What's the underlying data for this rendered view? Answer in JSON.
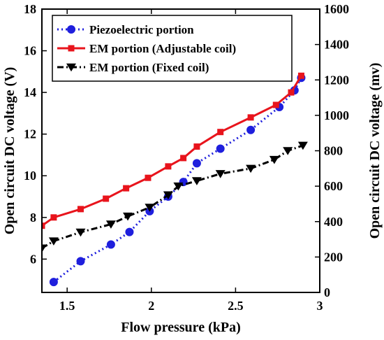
{
  "chart_data": {
    "type": "line",
    "xlabel": "Flow pressure (kPa)",
    "ylabel_left": "Open circuit DC voltage (V)",
    "ylabel_right": "Open circuit DC voltage (mv)",
    "xlim": [
      1.35,
      3
    ],
    "ylim_left": [
      4.4,
      18
    ],
    "ylim_right": [
      0,
      1600
    ],
    "xticks": [
      1.5,
      2,
      2.5,
      3
    ],
    "xtick_labels": [
      "1.5",
      "2",
      "2.5",
      "3"
    ],
    "yticks_left": [
      6,
      8,
      10,
      12,
      14,
      16,
      18
    ],
    "ytick_labels_left": [
      "6",
      "8",
      "10",
      "12",
      "14",
      "16",
      "18"
    ],
    "yticks_right": [
      0,
      200,
      400,
      600,
      800,
      1000,
      1200,
      1400,
      1600
    ],
    "ytick_labels_right": [
      "0",
      "200",
      "400",
      "600",
      "800",
      "1000",
      "1200",
      "1400",
      "1600"
    ],
    "legend_position": "top-left",
    "grid": false,
    "series": [
      {
        "name": "Piezoelectric portion",
        "axis": "left",
        "color": "#1f1fdd",
        "line_style": "dotted",
        "marker": "circle",
        "x": [
          1.42,
          1.58,
          1.76,
          1.87,
          1.99,
          2.1,
          2.19,
          2.27,
          2.41,
          2.59,
          2.76,
          2.85,
          2.89
        ],
        "y": [
          4.9,
          5.9,
          6.7,
          7.3,
          8.3,
          9.0,
          9.7,
          10.6,
          11.3,
          12.2,
          13.3,
          14.1,
          14.7
        ]
      },
      {
        "name": "EM portion (Adjustable coil)",
        "axis": "left",
        "color": "#e8141c",
        "line_style": "solid",
        "marker": "square",
        "x": [
          1.35,
          1.42,
          1.58,
          1.73,
          1.85,
          1.98,
          2.1,
          2.19,
          2.27,
          2.41,
          2.59,
          2.74,
          2.83,
          2.89
        ],
        "y": [
          7.6,
          8.0,
          8.4,
          8.9,
          9.4,
          9.9,
          10.45,
          10.85,
          11.4,
          12.1,
          12.8,
          13.4,
          14.0,
          14.8
        ]
      },
      {
        "name": "EM portion (Fixed coil)",
        "axis": "right",
        "color": "#000000",
        "line_style": "dashdot",
        "marker": "triangle-down",
        "x": [
          1.35,
          1.42,
          1.58,
          1.76,
          1.86,
          1.99,
          2.1,
          2.16,
          2.27,
          2.41,
          2.59,
          2.73,
          2.81,
          2.9
        ],
        "y": [
          250,
          290,
          340,
          385,
          430,
          480,
          550,
          600,
          630,
          670,
          700,
          750,
          800,
          830
        ]
      }
    ]
  }
}
